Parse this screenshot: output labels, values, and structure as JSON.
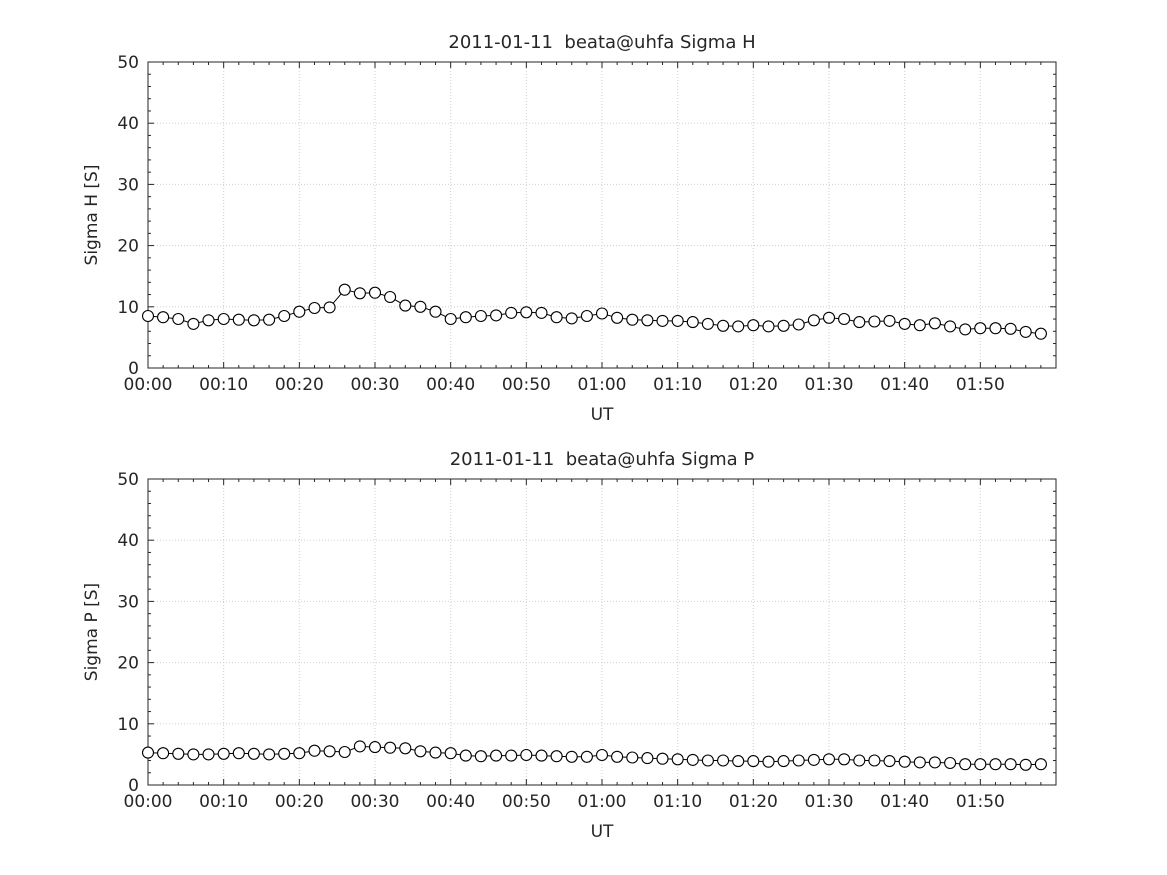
{
  "figure": {
    "background": "#ffffff",
    "axis_color": "#262626",
    "grid_color": "#cfcfcf",
    "data_color": "#000000"
  },
  "chart_data": [
    {
      "type": "line",
      "title": "2011-01-11  beata@uhfa Sigma H",
      "xlabel": "UT",
      "ylabel": "Sigma H [S]",
      "ylim": [
        0,
        50
      ],
      "xlim_minutes": [
        0,
        120
      ],
      "y_ticks": [
        0,
        10,
        20,
        30,
        40,
        50
      ],
      "y_minor_step": 2,
      "x_minor_step": 2,
      "x_tick_minutes": [
        0,
        10,
        20,
        30,
        40,
        50,
        60,
        70,
        80,
        90,
        100,
        110
      ],
      "x_tick_labels": [
        "00:00",
        "00:10",
        "00:20",
        "00:30",
        "00:40",
        "00:50",
        "01:00",
        "01:10",
        "01:20",
        "01:30",
        "01:40",
        "01:50"
      ],
      "grid": true,
      "marker": "open-circle",
      "x_minutes": [
        0,
        2,
        4,
        6,
        8,
        10,
        12,
        14,
        16,
        18,
        20,
        22,
        24,
        26,
        28,
        30,
        32,
        34,
        36,
        38,
        40,
        42,
        44,
        46,
        48,
        50,
        52,
        54,
        56,
        58,
        60,
        62,
        64,
        66,
        68,
        70,
        72,
        74,
        76,
        78,
        80,
        82,
        84,
        86,
        88,
        90,
        92,
        94,
        96,
        98,
        100,
        102,
        104,
        106,
        108,
        110,
        112,
        114,
        116,
        118
      ],
      "values": [
        8.5,
        8.3,
        8.0,
        7.2,
        7.8,
        8.0,
        7.9,
        7.8,
        7.9,
        8.5,
        9.2,
        9.8,
        9.9,
        12.8,
        12.2,
        12.3,
        11.6,
        10.2,
        10.0,
        9.2,
        8.0,
        8.3,
        8.5,
        8.6,
        9.0,
        9.1,
        9.0,
        8.3,
        8.1,
        8.5,
        8.9,
        8.2,
        7.9,
        7.8,
        7.7,
        7.7,
        7.5,
        7.2,
        6.9,
        6.8,
        7.0,
        6.8,
        6.9,
        7.1,
        7.8,
        8.2,
        8.0,
        7.5,
        7.6,
        7.7,
        7.2,
        7.0,
        7.3,
        6.8,
        6.3,
        6.5,
        6.5,
        6.4,
        5.9,
        5.6
      ]
    },
    {
      "type": "line",
      "title": "2011-01-11  beata@uhfa Sigma P",
      "xlabel": "UT",
      "ylabel": "Sigma P [S]",
      "ylim": [
        0,
        50
      ],
      "xlim_minutes": [
        0,
        120
      ],
      "y_ticks": [
        0,
        10,
        20,
        30,
        40,
        50
      ],
      "y_minor_step": 2,
      "x_minor_step": 2,
      "x_tick_minutes": [
        0,
        10,
        20,
        30,
        40,
        50,
        60,
        70,
        80,
        90,
        100,
        110
      ],
      "x_tick_labels": [
        "00:00",
        "00:10",
        "00:20",
        "00:30",
        "00:40",
        "00:50",
        "01:00",
        "01:10",
        "01:20",
        "01:30",
        "01:40",
        "01:50"
      ],
      "grid": true,
      "marker": "open-circle",
      "x_minutes": [
        0,
        2,
        4,
        6,
        8,
        10,
        12,
        14,
        16,
        18,
        20,
        22,
        24,
        26,
        28,
        30,
        32,
        34,
        36,
        38,
        40,
        42,
        44,
        46,
        48,
        50,
        52,
        54,
        56,
        58,
        60,
        62,
        64,
        66,
        68,
        70,
        72,
        74,
        76,
        78,
        80,
        82,
        84,
        86,
        88,
        90,
        92,
        94,
        96,
        98,
        100,
        102,
        104,
        106,
        108,
        110,
        112,
        114,
        116,
        118
      ],
      "values": [
        5.3,
        5.2,
        5.1,
        5.0,
        5.0,
        5.1,
        5.2,
        5.1,
        5.0,
        5.1,
        5.2,
        5.6,
        5.5,
        5.4,
        6.3,
        6.2,
        6.1,
        6.0,
        5.5,
        5.3,
        5.2,
        4.8,
        4.7,
        4.8,
        4.8,
        4.9,
        4.8,
        4.7,
        4.6,
        4.6,
        4.9,
        4.6,
        4.5,
        4.4,
        4.3,
        4.2,
        4.1,
        4.0,
        4.0,
        3.9,
        3.9,
        3.8,
        3.9,
        4.0,
        4.1,
        4.2,
        4.2,
        4.0,
        4.0,
        3.9,
        3.8,
        3.7,
        3.7,
        3.6,
        3.4,
        3.4,
        3.4,
        3.4,
        3.3,
        3.4
      ]
    }
  ]
}
